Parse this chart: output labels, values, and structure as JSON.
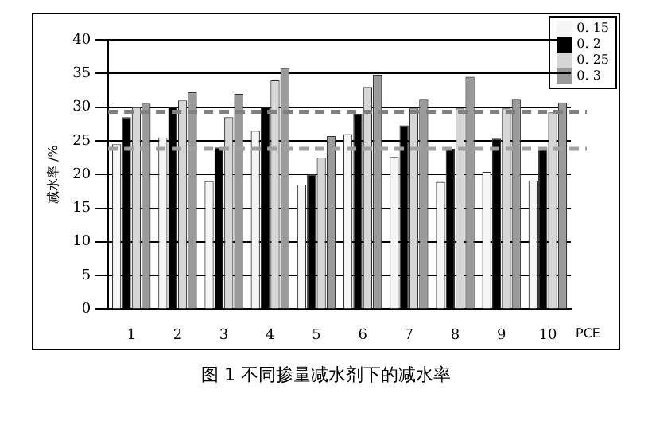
{
  "chart_data": {
    "type": "bar",
    "title": "图 1  不同掺量减水剂下的减水率",
    "xlabel": "PCE",
    "ylabel": "减水率 /%",
    "categories": [
      "1",
      "2",
      "3",
      "4",
      "5",
      "6",
      "7",
      "8",
      "9",
      "10"
    ],
    "series": [
      {
        "name": "0. 15",
        "color": "#f5f5f5",
        "values": [
          24.5,
          25.5,
          19,
          26.5,
          18.5,
          26,
          22.6,
          18.9,
          20.4,
          19.1
        ]
      },
      {
        "name": "0. 2",
        "color": "#000000",
        "values": [
          28.5,
          30,
          24,
          30,
          20,
          29,
          27.3,
          23.8,
          25.3,
          24
        ]
      },
      {
        "name": "0. 25",
        "color": "#d6d6d6",
        "values": [
          30,
          31,
          28.5,
          34,
          22.5,
          33,
          29.8,
          29.8,
          29.8,
          29.2
        ]
      },
      {
        "name": "0. 3",
        "color": "#9a9a9a",
        "values": [
          30.5,
          32.2,
          32,
          35.8,
          25.7,
          34.8,
          31.1,
          34.5,
          31.1,
          30.7
        ]
      }
    ],
    "ylim": [
      0,
      40
    ],
    "yticks": [
      0,
      5,
      10,
      15,
      20,
      25,
      30,
      35,
      40
    ],
    "grid": "y",
    "legend": "top right",
    "ref_lines": [
      {
        "axis": "y",
        "value": 29.3,
        "color": "#808080",
        "line_style": "dashed"
      },
      {
        "axis": "y",
        "value": 23.8,
        "color": "#a0a0a0",
        "line_style": "dashed"
      }
    ]
  }
}
